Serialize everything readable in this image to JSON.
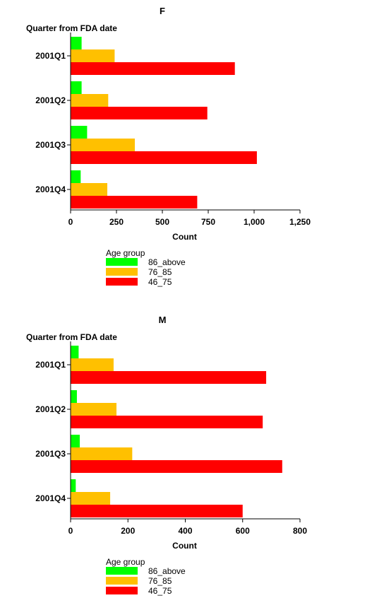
{
  "chart_data": [
    {
      "type": "bar",
      "orientation": "horizontal",
      "title": "F",
      "ylabel": "Quarter from FDA date",
      "xlabel": "Count",
      "categories": [
        "2001Q1",
        "2001Q2",
        "2001Q3",
        "2001Q4"
      ],
      "xlim": [
        0,
        1250
      ],
      "xticks": [
        0,
        250,
        500,
        750,
        1000,
        1250
      ],
      "xtick_labels": [
        "0",
        "250",
        "500",
        "750",
        "1,000",
        "1,250"
      ],
      "grid": false,
      "legend": {
        "title": "Age group",
        "position": "bottom-left"
      },
      "series": [
        {
          "name": "86_above",
          "color": "#00ff00",
          "values": [
            60,
            60,
            90,
            55
          ]
        },
        {
          "name": "76_85",
          "color": "#ffc000",
          "values": [
            240,
            205,
            350,
            200
          ]
        },
        {
          "name": "46_75",
          "color": "#ff0000",
          "values": [
            895,
            745,
            1015,
            690
          ]
        }
      ]
    },
    {
      "type": "bar",
      "orientation": "horizontal",
      "title": "M",
      "ylabel": "Quarter from FDA date",
      "xlabel": "Count",
      "categories": [
        "2001Q1",
        "2001Q2",
        "2001Q3",
        "2001Q4"
      ],
      "xlim": [
        0,
        800
      ],
      "xticks": [
        0,
        200,
        400,
        600,
        800
      ],
      "xtick_labels": [
        "0",
        "200",
        "400",
        "600",
        "800"
      ],
      "grid": false,
      "legend": {
        "title": "Age group",
        "position": "bottom-left"
      },
      "series": [
        {
          "name": "86_above",
          "color": "#00ff00",
          "values": [
            28,
            22,
            32,
            18
          ]
        },
        {
          "name": "76_85",
          "color": "#ffc000",
          "values": [
            150,
            160,
            215,
            138
          ]
        },
        {
          "name": "46_75",
          "color": "#ff0000",
          "values": [
            682,
            670,
            738,
            600
          ]
        }
      ]
    }
  ]
}
